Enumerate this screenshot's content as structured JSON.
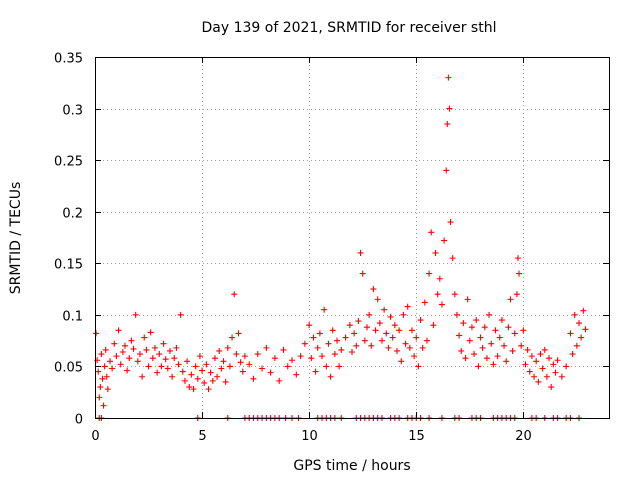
{
  "chart_data": {
    "type": "scatter",
    "title": "Day 139 of 2021, SRMTID for receiver sthl",
    "xlabel": "GPS time / hours",
    "ylabel": "SRMTID / TECUs",
    "xlim": [
      0,
      24
    ],
    "ylim": [
      0,
      0.35
    ],
    "x_ticks": [
      0,
      5,
      10,
      15,
      20
    ],
    "x_tick_labels": [
      "0",
      "5",
      "10",
      "15",
      "20"
    ],
    "y_ticks": [
      0,
      0.05,
      0.1,
      0.15,
      0.2,
      0.25,
      0.3,
      0.35
    ],
    "y_tick_labels": [
      "0",
      "0.05",
      "0.1",
      "0.15",
      "0.2",
      "0.25",
      "0.3",
      "0.35"
    ],
    "grid": true,
    "marker": "+",
    "series_color": "#ff0000",
    "series": [
      {
        "name": "SRMTID",
        "points": [
          [
            0.05,
            0.082
          ],
          [
            0.1,
            0.056
          ],
          [
            0.15,
            0.045
          ],
          [
            0.2,
            0.02
          ],
          [
            0.25,
            0.03
          ],
          [
            0.3,
            0.062
          ],
          [
            0.35,
            0.038
          ],
          [
            0.4,
            0.012
          ],
          [
            0.45,
            0.05
          ],
          [
            0.5,
            0.066
          ],
          [
            0.55,
            0.04
          ],
          [
            0.6,
            0.028
          ],
          [
            0.7,
            0.055
          ],
          [
            0.8,
            0.048
          ],
          [
            0.9,
            0.072
          ],
          [
            1.0,
            0.06
          ],
          [
            1.1,
            0.085
          ],
          [
            1.2,
            0.052
          ],
          [
            1.3,
            0.064
          ],
          [
            1.4,
            0.07
          ],
          [
            1.5,
            0.046
          ],
          [
            1.6,
            0.058
          ],
          [
            1.7,
            0.075
          ],
          [
            1.8,
            0.067
          ],
          [
            1.9,
            0.1
          ],
          [
            2.0,
            0.055
          ],
          [
            2.1,
            0.062
          ],
          [
            2.2,
            0.04
          ],
          [
            2.3,
            0.078
          ],
          [
            2.4,
            0.066
          ],
          [
            2.5,
            0.05
          ],
          [
            2.6,
            0.083
          ],
          [
            2.7,
            0.058
          ],
          [
            2.8,
            0.068
          ],
          [
            2.9,
            0.044
          ],
          [
            3.0,
            0.062
          ],
          [
            3.1,
            0.05
          ],
          [
            3.2,
            0.072
          ],
          [
            3.3,
            0.057
          ],
          [
            3.4,
            0.048
          ],
          [
            3.5,
            0.065
          ],
          [
            3.6,
            0.04
          ],
          [
            3.7,
            0.058
          ],
          [
            3.8,
            0.068
          ],
          [
            3.9,
            0.052
          ],
          [
            4.0,
            0.1
          ],
          [
            4.1,
            0.045
          ],
          [
            4.2,
            0.036
          ],
          [
            4.3,
            0.055
          ],
          [
            4.4,
            0.03
          ],
          [
            4.5,
            0.042
          ],
          [
            4.6,
            0.028
          ],
          [
            4.7,
            0.05
          ],
          [
            4.8,
            0.038
          ],
          [
            4.9,
            0.06
          ],
          [
            5.0,
            0.046
          ],
          [
            5.1,
            0.034
          ],
          [
            5.2,
            0.052
          ],
          [
            5.3,
            0.028
          ],
          [
            5.4,
            0.044
          ],
          [
            5.5,
            0.036
          ],
          [
            5.6,
            0.058
          ],
          [
            5.7,
            0.04
          ],
          [
            5.8,
            0.065
          ],
          [
            5.9,
            0.048
          ],
          [
            6.0,
            0.055
          ],
          [
            6.1,
            0.035
          ],
          [
            6.2,
            0.068
          ],
          [
            6.3,
            0.05
          ],
          [
            6.4,
            0.078
          ],
          [
            6.5,
            0.12
          ],
          [
            6.6,
            0.062
          ],
          [
            6.7,
            0.082
          ],
          [
            6.8,
            0.054
          ],
          [
            6.9,
            0.045
          ],
          [
            7.0,
            0.06
          ],
          [
            7.2,
            0.052
          ],
          [
            7.4,
            0.038
          ],
          [
            7.6,
            0.062
          ],
          [
            7.8,
            0.048
          ],
          [
            8.0,
            0.068
          ],
          [
            8.2,
            0.044
          ],
          [
            8.4,
            0.058
          ],
          [
            8.6,
            0.036
          ],
          [
            8.8,
            0.066
          ],
          [
            9.0,
            0.05
          ],
          [
            9.2,
            0.056
          ],
          [
            9.4,
            0.042
          ],
          [
            9.6,
            0.06
          ],
          [
            9.8,
            0.072
          ],
          [
            10.0,
            0.09
          ],
          [
            10.1,
            0.058
          ],
          [
            10.2,
            0.078
          ],
          [
            10.3,
            0.045
          ],
          [
            10.4,
            0.068
          ],
          [
            10.5,
            0.082
          ],
          [
            10.6,
            0.06
          ],
          [
            10.7,
            0.105
          ],
          [
            10.8,
            0.05
          ],
          [
            10.9,
            0.072
          ],
          [
            11.0,
            0.04
          ],
          [
            11.1,
            0.085
          ],
          [
            11.2,
            0.062
          ],
          [
            11.3,
            0.075
          ],
          [
            11.4,
            0.05
          ],
          [
            11.5,
            0.066
          ],
          [
            11.7,
            0.078
          ],
          [
            11.9,
            0.09
          ],
          [
            12.0,
            0.064
          ],
          [
            12.1,
            0.082
          ],
          [
            12.2,
            0.07
          ],
          [
            12.3,
            0.094
          ],
          [
            12.4,
            0.16
          ],
          [
            12.5,
            0.14
          ],
          [
            12.6,
            0.075
          ],
          [
            12.7,
            0.088
          ],
          [
            12.8,
            0.1
          ],
          [
            12.9,
            0.07
          ],
          [
            13.0,
            0.125
          ],
          [
            13.1,
            0.085
          ],
          [
            13.2,
            0.115
          ],
          [
            13.3,
            0.092
          ],
          [
            13.4,
            0.075
          ],
          [
            13.5,
            0.105
          ],
          [
            13.6,
            0.082
          ],
          [
            13.7,
            0.068
          ],
          [
            13.8,
            0.098
          ],
          [
            13.9,
            0.078
          ],
          [
            14.0,
            0.09
          ],
          [
            14.1,
            0.065
          ],
          [
            14.2,
            0.085
          ],
          [
            14.3,
            0.055
          ],
          [
            14.4,
            0.1
          ],
          [
            14.5,
            0.072
          ],
          [
            14.6,
            0.108
          ],
          [
            14.7,
            0.068
          ],
          [
            14.8,
            0.085
          ],
          [
            14.9,
            0.06
          ],
          [
            15.0,
            0.078
          ],
          [
            15.1,
            0.05
          ],
          [
            15.2,
            0.095
          ],
          [
            15.3,
            0.068
          ],
          [
            15.4,
            0.112
          ],
          [
            15.5,
            0.075
          ],
          [
            15.6,
            0.14
          ],
          [
            15.7,
            0.18
          ],
          [
            15.8,
            0.09
          ],
          [
            15.9,
            0.16
          ],
          [
            16.0,
            0.12
          ],
          [
            16.1,
            0.135
          ],
          [
            16.2,
            0.11
          ],
          [
            16.3,
            0.172
          ],
          [
            16.4,
            0.24
          ],
          [
            16.45,
            0.285
          ],
          [
            16.5,
            0.33
          ],
          [
            16.55,
            0.3
          ],
          [
            16.6,
            0.19
          ],
          [
            16.7,
            0.155
          ],
          [
            16.8,
            0.12
          ],
          [
            16.9,
            0.1
          ],
          [
            17.0,
            0.08
          ],
          [
            17.1,
            0.065
          ],
          [
            17.2,
            0.092
          ],
          [
            17.3,
            0.058
          ],
          [
            17.4,
            0.115
          ],
          [
            17.5,
            0.075
          ],
          [
            17.6,
            0.088
          ],
          [
            17.7,
            0.062
          ],
          [
            17.8,
            0.095
          ],
          [
            17.9,
            0.05
          ],
          [
            18.0,
            0.078
          ],
          [
            18.1,
            0.068
          ],
          [
            18.2,
            0.088
          ],
          [
            18.3,
            0.058
          ],
          [
            18.4,
            0.1
          ],
          [
            18.5,
            0.072
          ],
          [
            18.6,
            0.052
          ],
          [
            18.7,
            0.085
          ],
          [
            18.8,
            0.06
          ],
          [
            18.9,
            0.078
          ],
          [
            19.0,
            0.095
          ],
          [
            19.1,
            0.07
          ],
          [
            19.2,
            0.055
          ],
          [
            19.3,
            0.088
          ],
          [
            19.4,
            0.115
          ],
          [
            19.5,
            0.065
          ],
          [
            19.6,
            0.082
          ],
          [
            19.7,
            0.12
          ],
          [
            19.75,
            0.155
          ],
          [
            19.8,
            0.14
          ],
          [
            19.9,
            0.07
          ],
          [
            20.0,
            0.085
          ],
          [
            20.1,
            0.052
          ],
          [
            20.2,
            0.066
          ],
          [
            20.3,
            0.045
          ],
          [
            20.4,
            0.06
          ],
          [
            20.5,
            0.04
          ],
          [
            20.6,
            0.055
          ],
          [
            20.7,
            0.035
          ],
          [
            20.8,
            0.062
          ],
          [
            20.9,
            0.048
          ],
          [
            21.0,
            0.066
          ],
          [
            21.1,
            0.04
          ],
          [
            21.2,
            0.058
          ],
          [
            21.3,
            0.03
          ],
          [
            21.4,
            0.052
          ],
          [
            21.5,
            0.044
          ],
          [
            21.6,
            0.056
          ],
          [
            21.8,
            0.04
          ],
          [
            22.0,
            0.05
          ],
          [
            22.2,
            0.082
          ],
          [
            22.3,
            0.062
          ],
          [
            22.4,
            0.1
          ],
          [
            22.5,
            0.07
          ],
          [
            22.6,
            0.092
          ],
          [
            22.7,
            0.078
          ],
          [
            22.8,
            0.104
          ],
          [
            22.9,
            0.086
          ],
          [
            0.2,
            0.0
          ],
          [
            0.3,
            0.0
          ],
          [
            4.8,
            0.0
          ],
          [
            6.2,
            0.0
          ],
          [
            7.0,
            0.0
          ],
          [
            7.2,
            0.0
          ],
          [
            7.4,
            0.0
          ],
          [
            7.6,
            0.0
          ],
          [
            7.8,
            0.0
          ],
          [
            8.0,
            0.0
          ],
          [
            8.2,
            0.0
          ],
          [
            8.4,
            0.0
          ],
          [
            8.6,
            0.0
          ],
          [
            8.9,
            0.0
          ],
          [
            9.2,
            0.0
          ],
          [
            9.5,
            0.0
          ],
          [
            10.4,
            0.0
          ],
          [
            10.6,
            0.0
          ],
          [
            10.8,
            0.0
          ],
          [
            11.0,
            0.0
          ],
          [
            11.2,
            0.0
          ],
          [
            11.5,
            0.0
          ],
          [
            12.2,
            0.0
          ],
          [
            12.4,
            0.0
          ],
          [
            12.6,
            0.0
          ],
          [
            12.8,
            0.0
          ],
          [
            13.0,
            0.0
          ],
          [
            13.2,
            0.0
          ],
          [
            13.4,
            0.0
          ],
          [
            13.8,
            0.0
          ],
          [
            14.0,
            0.0
          ],
          [
            14.2,
            0.0
          ],
          [
            14.6,
            0.0
          ],
          [
            14.8,
            0.0
          ],
          [
            15.0,
            0.0
          ],
          [
            15.2,
            0.0
          ],
          [
            15.6,
            0.0
          ],
          [
            16.2,
            0.0
          ],
          [
            16.8,
            0.0
          ],
          [
            17.0,
            0.0
          ],
          [
            17.6,
            0.0
          ],
          [
            17.8,
            0.0
          ],
          [
            18.0,
            0.0
          ],
          [
            18.6,
            0.0
          ],
          [
            18.8,
            0.0
          ],
          [
            19.0,
            0.0
          ],
          [
            19.2,
            0.0
          ],
          [
            19.4,
            0.0
          ],
          [
            19.6,
            0.0
          ],
          [
            20.4,
            0.0
          ],
          [
            20.6,
            0.0
          ],
          [
            21.0,
            0.0
          ],
          [
            21.4,
            0.0
          ],
          [
            21.6,
            0.0
          ],
          [
            22.0,
            0.0
          ],
          [
            22.2,
            0.0
          ],
          [
            22.6,
            0.0
          ]
        ]
      }
    ]
  }
}
